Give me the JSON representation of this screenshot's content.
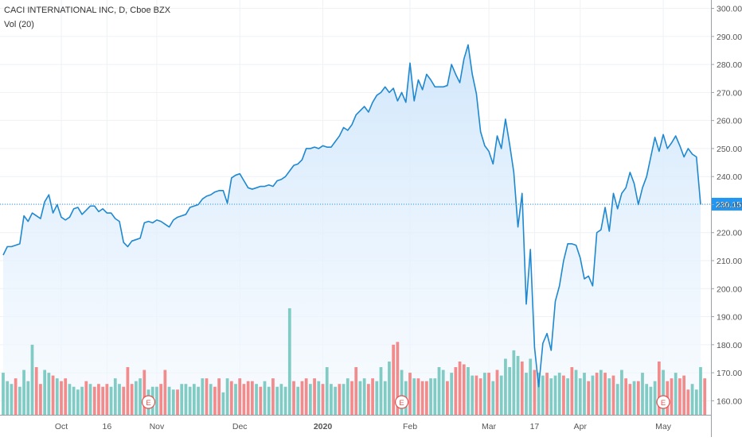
{
  "legend": {
    "title": "CACI INTERNATIONAL INC, D, Cboe BZX",
    "volume": "Vol (20)"
  },
  "colors": {
    "line": "#2196f3",
    "line_stroke": "#1e88d0",
    "area_top": "#cfe6fb",
    "area_bottom": "#f4f9ff",
    "vol_up": "#80cbc4",
    "vol_down": "#f28b8b",
    "earnings": "#e0524f",
    "grid": "#eef1f5",
    "price_label_bg": "#2196f3"
  },
  "chart_data": {
    "type": "area",
    "title": "CACI INTERNATIONAL INC, D, Cboe BZX",
    "ylim": [
      155,
      303
    ],
    "yticks": [
      160,
      170,
      180,
      190,
      200,
      210,
      220,
      230,
      240,
      250,
      260,
      270,
      280,
      290,
      300
    ],
    "ytick_labels": [
      "160.00",
      "170.00",
      "180.00",
      "190.00",
      "200.00",
      "210.00",
      "220.00",
      "230.00",
      "240.00",
      "250.00",
      "260.00",
      "270.00",
      "280.00",
      "290.00",
      "300.00"
    ],
    "x_ticks": [
      {
        "label": "Oct",
        "index": 14,
        "bold": false
      },
      {
        "label": "16",
        "index": 25,
        "bold": false
      },
      {
        "label": "Nov",
        "index": 37,
        "bold": false
      },
      {
        "label": "Dec",
        "index": 57,
        "bold": false
      },
      {
        "label": "2020",
        "index": 77,
        "bold": true
      },
      {
        "label": "Feb",
        "index": 98,
        "bold": false
      },
      {
        "label": "Mar",
        "index": 117,
        "bold": false
      },
      {
        "label": "17",
        "index": 128,
        "bold": false
      },
      {
        "label": "Apr",
        "index": 139,
        "bold": false
      },
      {
        "label": "May",
        "index": 159,
        "bold": false
      }
    ],
    "last_price": 230.15,
    "last_price_label": "230.15",
    "volume_series_name": "Vol (20)",
    "earnings_markers": [
      {
        "label": "E",
        "index": 35
      },
      {
        "label": "E",
        "index": 96
      },
      {
        "label": "E",
        "index": 159
      }
    ],
    "close": [
      212,
      215,
      215,
      215.5,
      216,
      226,
      224,
      227,
      226,
      225,
      231,
      233.5,
      227,
      230,
      225.5,
      224.5,
      225.5,
      228.5,
      229,
      226.5,
      228,
      229.5,
      229.5,
      227.5,
      228.5,
      227,
      227,
      225,
      224,
      216.5,
      215,
      217,
      217.5,
      218,
      223.5,
      224,
      223.5,
      224.5,
      224,
      223,
      222,
      224.5,
      225.5,
      226,
      226.5,
      229,
      229.5,
      230,
      232,
      233,
      233.5,
      234.5,
      235,
      235,
      230.5,
      239.5,
      240.5,
      241,
      238.5,
      236,
      235.5,
      236,
      236.5,
      236.5,
      237,
      236.5,
      238.5,
      239,
      240,
      242,
      244,
      244.5,
      246,
      250,
      250,
      250.5,
      250,
      251,
      250.5,
      250.5,
      252.5,
      254.5,
      257.5,
      256.5,
      258.5,
      262,
      263.5,
      265,
      263,
      266.5,
      269,
      270,
      272,
      270,
      271.5,
      267,
      270,
      266.5,
      280.5,
      267,
      274.5,
      271,
      276.5,
      274.5,
      272,
      272,
      272,
      272.5,
      280,
      276.5,
      273.5,
      282,
      287,
      276.5,
      269.5,
      256,
      251,
      249,
      244.5,
      254.5,
      250,
      260.5,
      251.5,
      241.5,
      222,
      234,
      194.5,
      214,
      179,
      165,
      180.5,
      184,
      178,
      195.5,
      201,
      210,
      216,
      216,
      215.5,
      211,
      203.5,
      204.5,
      201,
      220,
      221,
      229,
      220.5,
      234,
      228.5,
      234,
      236,
      241.5,
      237.5,
      230,
      236,
      240,
      247,
      254,
      249,
      255,
      250,
      252,
      254.5,
      251,
      247,
      250,
      248,
      247,
      230
    ],
    "volume": [
      {
        "v": 170,
        "up": true
      },
      {
        "v": 167,
        "up": true
      },
      {
        "v": 166,
        "up": true
      },
      {
        "v": 168,
        "up": false
      },
      {
        "v": 165,
        "up": true
      },
      {
        "v": 171,
        "up": true
      },
      {
        "v": 167,
        "up": true
      },
      {
        "v": 180,
        "up": true
      },
      {
        "v": 172,
        "up": false
      },
      {
        "v": 166,
        "up": false
      },
      {
        "v": 171,
        "up": true
      },
      {
        "v": 170,
        "up": true
      },
      {
        "v": 169,
        "up": false
      },
      {
        "v": 168,
        "up": true
      },
      {
        "v": 167,
        "up": false
      },
      {
        "v": 168,
        "up": false
      },
      {
        "v": 166,
        "up": true
      },
      {
        "v": 165,
        "up": true
      },
      {
        "v": 164,
        "up": true
      },
      {
        "v": 165,
        "up": true
      },
      {
        "v": 167,
        "up": false
      },
      {
        "v": 166,
        "up": true
      },
      {
        "v": 165,
        "up": false
      },
      {
        "v": 166,
        "up": false
      },
      {
        "v": 165,
        "up": false
      },
      {
        "v": 166,
        "up": false
      },
      {
        "v": 165,
        "up": true
      },
      {
        "v": 168,
        "up": true
      },
      {
        "v": 166,
        "up": true
      },
      {
        "v": 165,
        "up": false
      },
      {
        "v": 172,
        "up": false
      },
      {
        "v": 166,
        "up": false
      },
      {
        "v": 167,
        "up": true
      },
      {
        "v": 168,
        "up": true
      },
      {
        "v": 171,
        "up": false
      },
      {
        "v": 164,
        "up": true
      },
      {
        "v": 165,
        "up": true
      },
      {
        "v": 165,
        "up": true
      },
      {
        "v": 166,
        "up": false
      },
      {
        "v": 171,
        "up": false
      },
      {
        "v": 165,
        "up": true
      },
      {
        "v": 164,
        "up": true
      },
      {
        "v": 164,
        "up": false
      },
      {
        "v": 166,
        "up": true
      },
      {
        "v": 166,
        "up": true
      },
      {
        "v": 165,
        "up": true
      },
      {
        "v": 166,
        "up": true
      },
      {
        "v": 165,
        "up": true
      },
      {
        "v": 168,
        "up": true
      },
      {
        "v": 168,
        "up": false
      },
      {
        "v": 166,
        "up": true
      },
      {
        "v": 165,
        "up": false
      },
      {
        "v": 168,
        "up": false
      },
      {
        "v": 163,
        "up": true
      },
      {
        "v": 168,
        "up": true
      },
      {
        "v": 167,
        "up": false
      },
      {
        "v": 166,
        "up": true
      },
      {
        "v": 168,
        "up": false
      },
      {
        "v": 166,
        "up": false
      },
      {
        "v": 167,
        "up": false
      },
      {
        "v": 167,
        "up": false
      },
      {
        "v": 166,
        "up": true
      },
      {
        "v": 165,
        "up": false
      },
      {
        "v": 167,
        "up": true
      },
      {
        "v": 165,
        "up": true
      },
      {
        "v": 168,
        "up": false
      },
      {
        "v": 165,
        "up": true
      },
      {
        "v": 166,
        "up": true
      },
      {
        "v": 165,
        "up": true
      },
      {
        "v": 193,
        "up": true
      },
      {
        "v": 167,
        "up": false
      },
      {
        "v": 165,
        "up": true
      },
      {
        "v": 167,
        "up": false
      },
      {
        "v": 168,
        "up": false
      },
      {
        "v": 166,
        "up": true
      },
      {
        "v": 168,
        "up": false
      },
      {
        "v": 167,
        "up": true
      },
      {
        "v": 166,
        "up": false
      },
      {
        "v": 172,
        "up": true
      },
      {
        "v": 166,
        "up": true
      },
      {
        "v": 165,
        "up": true
      },
      {
        "v": 166,
        "up": false
      },
      {
        "v": 166,
        "up": true
      },
      {
        "v": 168,
        "up": true
      },
      {
        "v": 167,
        "up": false
      },
      {
        "v": 172,
        "up": false
      },
      {
        "v": 167,
        "up": true
      },
      {
        "v": 168,
        "up": true
      },
      {
        "v": 166,
        "up": false
      },
      {
        "v": 168,
        "up": false
      },
      {
        "v": 167,
        "up": true
      },
      {
        "v": 172,
        "up": true
      },
      {
        "v": 167,
        "up": true
      },
      {
        "v": 174,
        "up": true
      },
      {
        "v": 180,
        "up": false
      },
      {
        "v": 181,
        "up": false
      },
      {
        "v": 171,
        "up": true
      },
      {
        "v": 167,
        "up": true
      },
      {
        "v": 170,
        "up": false
      },
      {
        "v": 168,
        "up": true
      },
      {
        "v": 168,
        "up": false
      },
      {
        "v": 167,
        "up": false
      },
      {
        "v": 167,
        "up": false
      },
      {
        "v": 168,
        "up": true
      },
      {
        "v": 168,
        "up": true
      },
      {
        "v": 172,
        "up": true
      },
      {
        "v": 171,
        "up": true
      },
      {
        "v": 167,
        "up": false
      },
      {
        "v": 170,
        "up": true
      },
      {
        "v": 172,
        "up": false
      },
      {
        "v": 174,
        "up": false
      },
      {
        "v": 173,
        "up": false
      },
      {
        "v": 172,
        "up": true
      },
      {
        "v": 169,
        "up": true
      },
      {
        "v": 169,
        "up": false
      },
      {
        "v": 168,
        "up": false
      },
      {
        "v": 170,
        "up": true
      },
      {
        "v": 170,
        "up": false
      },
      {
        "v": 167,
        "up": true
      },
      {
        "v": 171,
        "up": false
      },
      {
        "v": 169,
        "up": true
      },
      {
        "v": 175,
        "up": true
      },
      {
        "v": 172,
        "up": true
      },
      {
        "v": 178,
        "up": true
      },
      {
        "v": 176,
        "up": true
      },
      {
        "v": 174,
        "up": false
      },
      {
        "v": 170,
        "up": true
      },
      {
        "v": 175,
        "up": true
      },
      {
        "v": 171,
        "up": false
      },
      {
        "v": 170,
        "up": true
      },
      {
        "v": 169,
        "up": true
      },
      {
        "v": 170,
        "up": false
      },
      {
        "v": 168,
        "up": true
      },
      {
        "v": 169,
        "up": true
      },
      {
        "v": 170,
        "up": true
      },
      {
        "v": 169,
        "up": false
      },
      {
        "v": 168,
        "up": true
      },
      {
        "v": 172,
        "up": false
      },
      {
        "v": 171,
        "up": true
      },
      {
        "v": 168,
        "up": true
      },
      {
        "v": 170,
        "up": true
      },
      {
        "v": 167,
        "up": false
      },
      {
        "v": 169,
        "up": true
      },
      {
        "v": 170,
        "up": false
      },
      {
        "v": 171,
        "up": true
      },
      {
        "v": 170,
        "up": false
      },
      {
        "v": 168,
        "up": true
      },
      {
        "v": 169,
        "up": false
      },
      {
        "v": 166,
        "up": true
      },
      {
        "v": 171,
        "up": true
      },
      {
        "v": 168,
        "up": false
      },
      {
        "v": 166,
        "up": false
      },
      {
        "v": 167,
        "up": true
      },
      {
        "v": 167,
        "up": false
      },
      {
        "v": 170,
        "up": true
      },
      {
        "v": 166,
        "up": true
      },
      {
        "v": 165,
        "up": true
      },
      {
        "v": 167,
        "up": true
      },
      {
        "v": 174,
        "up": false
      },
      {
        "v": 171,
        "up": true
      },
      {
        "v": 167,
        "up": false
      },
      {
        "v": 168,
        "up": false
      },
      {
        "v": 170,
        "up": true
      },
      {
        "v": 168,
        "up": false
      },
      {
        "v": 169,
        "up": false
      },
      {
        "v": 164,
        "up": false
      },
      {
        "v": 166,
        "up": true
      },
      {
        "v": 164,
        "up": true
      },
      {
        "v": 172,
        "up": true
      },
      {
        "v": 168,
        "up": false
      }
    ]
  }
}
